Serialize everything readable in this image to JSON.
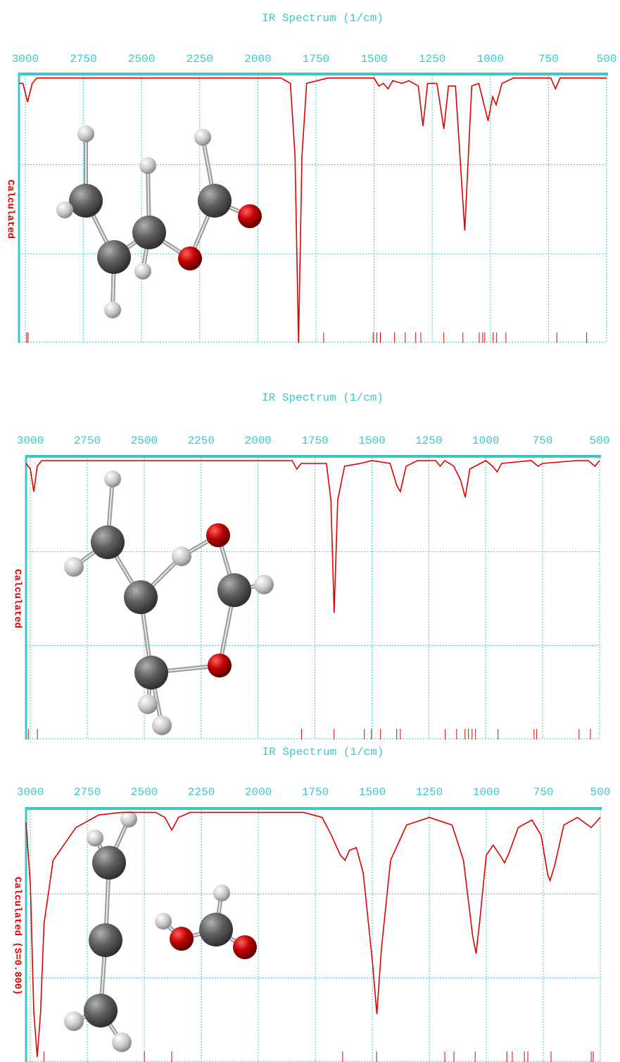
{
  "chart_data": [
    {
      "type": "line",
      "title": "IR Spectrum (1/cm)",
      "ylabel": "Calculated",
      "color": "#e00000",
      "xlim": [
        3027,
        500
      ],
      "ylim": [
        0,
        100
      ],
      "xticks": [
        3000,
        2750,
        2500,
        2250,
        2000,
        1750,
        1500,
        1250,
        1000,
        750,
        500
      ],
      "x": [
        3027,
        3010,
        2990,
        2970,
        2950,
        1900,
        1860,
        1840,
        1825,
        1810,
        1790,
        1700,
        1500,
        1480,
        1460,
        1440,
        1420,
        1380,
        1350,
        1310,
        1290,
        1270,
        1230,
        1200,
        1180,
        1150,
        1110,
        1080,
        1050,
        1010,
        990,
        975,
        950,
        900,
        740,
        720,
        700,
        500
      ],
      "values": [
        97,
        97,
        90,
        97,
        99,
        99,
        97,
        70,
        0,
        70,
        97,
        99,
        99,
        96,
        97,
        95,
        98,
        97,
        98,
        96,
        81,
        97,
        97,
        80,
        96,
        96,
        42,
        96,
        97,
        83,
        92,
        89,
        97,
        99,
        99,
        95,
        99,
        99
      ],
      "sticks": [
        2994,
        2988,
        1717,
        1504,
        1488,
        1473,
        1412,
        1366,
        1321,
        1299,
        1200,
        1118,
        1048,
        1033,
        1024,
        988,
        973,
        933,
        714,
        586
      ]
    },
    {
      "type": "line",
      "title": "IR Spectrum (1/cm)",
      "ylabel": "Calculated",
      "color": "#e00000",
      "xlim": [
        3019,
        500
      ],
      "ylim": [
        0,
        100
      ],
      "xticks": [
        3000,
        2750,
        2500,
        2250,
        2000,
        1750,
        1500,
        1250,
        1000,
        750,
        500
      ],
      "x": [
        3019,
        3000,
        2985,
        2970,
        2950,
        1850,
        1830,
        1810,
        1700,
        1680,
        1666,
        1650,
        1620,
        1550,
        1500,
        1420,
        1390,
        1375,
        1350,
        1300,
        1220,
        1200,
        1180,
        1140,
        1110,
        1090,
        1070,
        1000,
        970,
        950,
        930,
        800,
        770,
        750,
        600,
        550,
        520,
        500
      ],
      "values": [
        98,
        96,
        88,
        97,
        99,
        99,
        96,
        98,
        98,
        85,
        45,
        85,
        97,
        98,
        99,
        98,
        90,
        88,
        97,
        99,
        99,
        97,
        99,
        97,
        92,
        86,
        96,
        99,
        97,
        95,
        98,
        99,
        97,
        98,
        99,
        99,
        97,
        99
      ],
      "sticks": [
        3009,
        2969,
        1809,
        1666,
        1533,
        1502,
        1462,
        1391,
        1375,
        1178,
        1128,
        1091,
        1076,
        1060,
        1045,
        946,
        788,
        776,
        590,
        540
      ]
    },
    {
      "type": "line",
      "title": "IR Spectrum (1/cm)",
      "ylabel": "Calculated (S=0.800)",
      "color": "#e00000",
      "xlim": [
        3019,
        500
      ],
      "ylim": [
        0,
        100
      ],
      "xticks": [
        3000,
        2750,
        2500,
        2250,
        2000,
        1750,
        1500,
        1250,
        1000,
        750,
        500
      ],
      "x": [
        3019,
        3000,
        2985,
        2970,
        2955,
        2940,
        2900,
        2800,
        2700,
        2600,
        2450,
        2410,
        2380,
        2350,
        2300,
        1800,
        1720,
        1680,
        1640,
        1620,
        1600,
        1570,
        1540,
        1500,
        1480,
        1460,
        1420,
        1350,
        1250,
        1150,
        1100,
        1060,
        1045,
        1030,
        1000,
        970,
        940,
        920,
        900,
        860,
        800,
        760,
        730,
        720,
        700,
        660,
        600,
        540,
        500
      ],
      "values": [
        95,
        70,
        20,
        2,
        20,
        55,
        80,
        93,
        98,
        99,
        99,
        97,
        92,
        97,
        99,
        99,
        97,
        90,
        82,
        80,
        84,
        85,
        75,
        40,
        19,
        45,
        80,
        94,
        97,
        94,
        80,
        50,
        43,
        55,
        82,
        86,
        82,
        79,
        83,
        93,
        96,
        90,
        74,
        72,
        78,
        94,
        97,
        93,
        97
      ],
      "sticks": [
        2941,
        2500,
        2380,
        1630,
        1481,
        1182,
        1142,
        1049,
        910,
        886,
        833,
        818,
        716,
        540,
        531
      ]
    }
  ]
}
